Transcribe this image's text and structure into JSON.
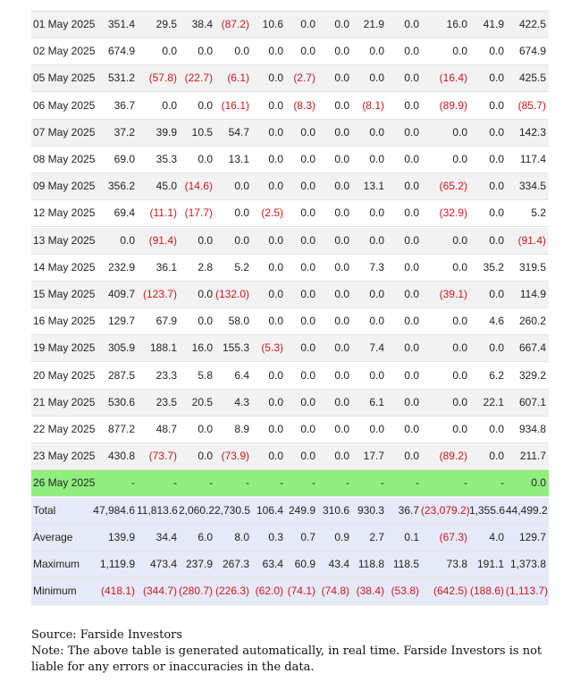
{
  "table": {
    "rows": [
      {
        "date": "01 May 2025",
        "values": [
          "351.4",
          "29.5",
          "38.4",
          "(87.2)",
          "10.6",
          "0.0",
          "0.0",
          "21.9",
          "0.0",
          "16.0",
          "41.9",
          "422.5"
        ]
      },
      {
        "date": "02 May 2025",
        "values": [
          "674.9",
          "0.0",
          "0.0",
          "0.0",
          "0.0",
          "0.0",
          "0.0",
          "0.0",
          "0.0",
          "0.0",
          "0.0",
          "674.9"
        ]
      },
      {
        "date": "05 May 2025",
        "values": [
          "531.2",
          "(57.8)",
          "(22.7)",
          "(6.1)",
          "0.0",
          "(2.7)",
          "0.0",
          "0.0",
          "0.0",
          "(16.4)",
          "0.0",
          "425.5"
        ]
      },
      {
        "date": "06 May 2025",
        "values": [
          "36.7",
          "0.0",
          "0.0",
          "(16.1)",
          "0.0",
          "(8.3)",
          "0.0",
          "(8.1)",
          "0.0",
          "(89.9)",
          "0.0",
          "(85.7)"
        ]
      },
      {
        "date": "07 May 2025",
        "values": [
          "37.2",
          "39.9",
          "10.5",
          "54.7",
          "0.0",
          "0.0",
          "0.0",
          "0.0",
          "0.0",
          "0.0",
          "0.0",
          "142.3"
        ]
      },
      {
        "date": "08 May 2025",
        "values": [
          "69.0",
          "35.3",
          "0.0",
          "13.1",
          "0.0",
          "0.0",
          "0.0",
          "0.0",
          "0.0",
          "0.0",
          "0.0",
          "117.4"
        ]
      },
      {
        "date": "09 May 2025",
        "values": [
          "356.2",
          "45.0",
          "(14.6)",
          "0.0",
          "0.0",
          "0.0",
          "0.0",
          "13.1",
          "0.0",
          "(65.2)",
          "0.0",
          "334.5"
        ]
      },
      {
        "date": "12 May 2025",
        "values": [
          "69.4",
          "(11.1)",
          "(17.7)",
          "0.0",
          "(2.5)",
          "0.0",
          "0.0",
          "0.0",
          "0.0",
          "(32.9)",
          "0.0",
          "5.2"
        ]
      },
      {
        "date": "13 May 2025",
        "values": [
          "0.0",
          "(91.4)",
          "0.0",
          "0.0",
          "0.0",
          "0.0",
          "0.0",
          "0.0",
          "0.0",
          "0.0",
          "0.0",
          "(91.4)"
        ]
      },
      {
        "date": "14 May 2025",
        "values": [
          "232.9",
          "36.1",
          "2.8",
          "5.2",
          "0.0",
          "0.0",
          "0.0",
          "7.3",
          "0.0",
          "0.0",
          "35.2",
          "319.5"
        ]
      },
      {
        "date": "15 May 2025",
        "values": [
          "409.7",
          "(123.7)",
          "0.0",
          "(132.0)",
          "0.0",
          "0.0",
          "0.0",
          "0.0",
          "0.0",
          "(39.1)",
          "0.0",
          "114.9"
        ]
      },
      {
        "date": "16 May 2025",
        "values": [
          "129.7",
          "67.9",
          "0.0",
          "58.0",
          "0.0",
          "0.0",
          "0.0",
          "0.0",
          "0.0",
          "0.0",
          "4.6",
          "260.2"
        ]
      },
      {
        "date": "19 May 2025",
        "values": [
          "305.9",
          "188.1",
          "16.0",
          "155.3",
          "(5.3)",
          "0.0",
          "0.0",
          "7.4",
          "0.0",
          "0.0",
          "0.0",
          "667.4"
        ]
      },
      {
        "date": "20 May 2025",
        "values": [
          "287.5",
          "23.3",
          "5.8",
          "6.4",
          "0.0",
          "0.0",
          "0.0",
          "0.0",
          "0.0",
          "0.0",
          "6.2",
          "329.2"
        ]
      },
      {
        "date": "21 May 2025",
        "values": [
          "530.6",
          "23.5",
          "20.5",
          "4.3",
          "0.0",
          "0.0",
          "0.0",
          "6.1",
          "0.0",
          "0.0",
          "22.1",
          "607.1"
        ]
      },
      {
        "date": "22 May 2025",
        "values": [
          "877.2",
          "48.7",
          "0.0",
          "8.9",
          "0.0",
          "0.0",
          "0.0",
          "0.0",
          "0.0",
          "0.0",
          "0.0",
          "934.8"
        ]
      },
      {
        "date": "23 May 2025",
        "values": [
          "430.8",
          "(73.7)",
          "0.0",
          "(73.9)",
          "0.0",
          "0.0",
          "0.0",
          "17.7",
          "0.0",
          "(89.2)",
          "0.0",
          "211.7"
        ]
      },
      {
        "date": "26 May 2025",
        "highlighted": true,
        "values": [
          "-",
          "-",
          "-",
          "-",
          "-",
          "-",
          "-",
          "-",
          "-",
          "-",
          "-",
          "0.0"
        ]
      }
    ],
    "summary": [
      {
        "label": "Total",
        "values": [
          "47,984.6",
          "11,813.6",
          "2,060.2",
          "2,730.5",
          "106.4",
          "249.9",
          "310.6",
          "930.3",
          "36.7",
          "(23,079.2)",
          "1,355.6",
          "44,499.2"
        ]
      },
      {
        "label": "Average",
        "values": [
          "139.9",
          "34.4",
          "6.0",
          "8.0",
          "0.3",
          "0.7",
          "0.9",
          "2.7",
          "0.1",
          "(67.3)",
          "4.0",
          "129.7"
        ]
      },
      {
        "label": "Maximum",
        "values": [
          "1,119.9",
          "473.4",
          "237.9",
          "267.3",
          "63.4",
          "60.9",
          "43.4",
          "118.8",
          "118.5",
          "73.8",
          "191.1",
          "1,373.8"
        ]
      },
      {
        "label": "Minimum",
        "values": [
          "(418.1)",
          "(344.7)",
          "(280.7)",
          "(226.3)",
          "(62.0)",
          "(74.1)",
          "(74.8)",
          "(38.4)",
          "(53.8)",
          "(642.5)",
          "(188.6)",
          "(1,113.7)"
        ]
      }
    ]
  },
  "footer": {
    "source": "Source: Farside Investors",
    "note": "Note: The above table is generated automatically, in real time. Farside Investors is not liable for any errors or inaccuracies in the data."
  }
}
